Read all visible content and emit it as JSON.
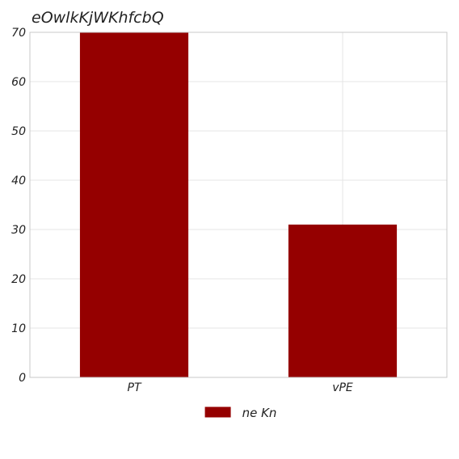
{
  "chart_data": {
    "type": "bar",
    "title": "eOwlkKjWKhfcbQ",
    "categories": [
      "PT",
      "vPE"
    ],
    "series": [
      {
        "name": "ne Kn",
        "values": [
          70,
          31
        ],
        "color": "#950000"
      }
    ],
    "ylim": [
      0,
      70
    ],
    "yticks": [
      0,
      10,
      20,
      30,
      40,
      50,
      60,
      70
    ],
    "xlabel": "",
    "ylabel": "",
    "grid": true,
    "legend_position": "bottom-center"
  }
}
